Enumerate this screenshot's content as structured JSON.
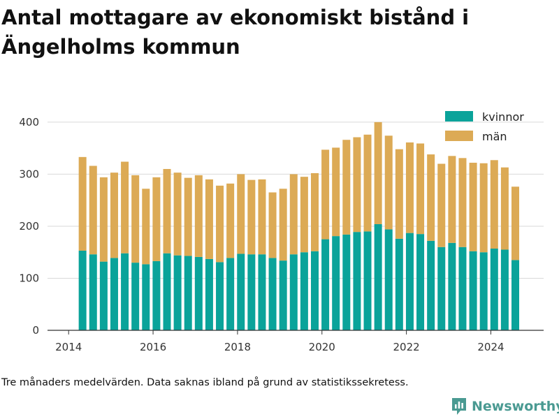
{
  "title": "Antal mottagare av ekonomiskt bistånd i Ängelholms kommun",
  "footnote": "Tre månaders medelvärden. Data saknas ibland på grund av statistikssekretess.",
  "brand": "Newsworthy",
  "colors": {
    "kvinnor": "#0aa39a",
    "man": "#dcaa55",
    "grid": "#d9d9d9",
    "axis": "#333333"
  },
  "chart_data": {
    "type": "bar",
    "stacked": true,
    "xlim": [
      2013.5,
      2025.25
    ],
    "ylim": [
      0,
      420
    ],
    "x_ticks": [
      2014,
      2016,
      2018,
      2020,
      2022,
      2024
    ],
    "y_ticks": [
      0,
      100,
      200,
      300,
      400
    ],
    "grid": true,
    "legend_position": "top-right",
    "x": [
      2014.33,
      2014.58,
      2014.83,
      2015.08,
      2015.33,
      2015.58,
      2015.83,
      2016.08,
      2016.33,
      2016.58,
      2016.83,
      2017.08,
      2017.33,
      2017.58,
      2017.83,
      2018.08,
      2018.33,
      2018.58,
      2018.83,
      2019.08,
      2019.33,
      2019.58,
      2019.83,
      2020.08,
      2020.33,
      2020.58,
      2020.83,
      2021.08,
      2021.33,
      2021.58,
      2021.83,
      2022.08,
      2022.33,
      2022.58,
      2022.83,
      2023.08,
      2023.33,
      2023.58,
      2023.83,
      2024.08,
      2024.33,
      2024.58
    ],
    "series": [
      {
        "name": "kvinnor",
        "values": [
          153,
          146,
          132,
          139,
          148,
          130,
          127,
          133,
          148,
          144,
          143,
          141,
          137,
          131,
          139,
          147,
          146,
          146,
          139,
          134,
          146,
          150,
          152,
          175,
          181,
          184,
          189,
          190,
          204,
          194,
          176,
          187,
          185,
          172,
          160,
          168,
          160,
          152,
          150,
          157,
          155,
          135
        ]
      },
      {
        "name": "män",
        "values": [
          180,
          170,
          162,
          164,
          176,
          168,
          145,
          161,
          162,
          159,
          150,
          157,
          153,
          147,
          143,
          153,
          143,
          144,
          126,
          138,
          154,
          145,
          150,
          172,
          170,
          182,
          182,
          186,
          196,
          180,
          172,
          174,
          174,
          166,
          160,
          167,
          171,
          170,
          171,
          170,
          158,
          141
        ]
      }
    ]
  }
}
